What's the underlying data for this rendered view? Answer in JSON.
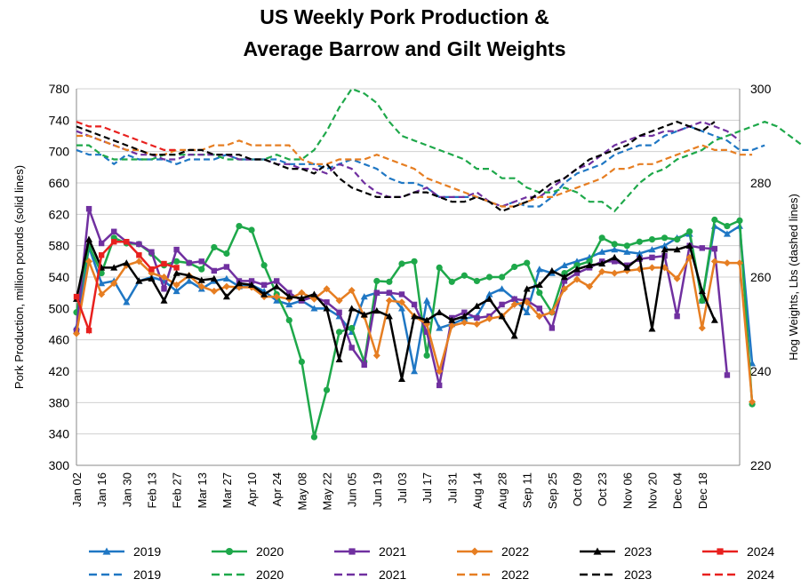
{
  "chart_data": {
    "type": "line",
    "title_line1": "US Weekly Pork Production &",
    "title_line2": "Average Barrow and Gilt Weights",
    "ylabel_left": "Pork Production, million pounds (solid lines)",
    "ylabel_right": "Hog Weights, Lbs (dashed lines)",
    "ylim_left": [
      300,
      780
    ],
    "ylim_right": [
      220,
      300
    ],
    "yticks_left": [
      300,
      340,
      380,
      420,
      460,
      500,
      540,
      580,
      620,
      660,
      700,
      740,
      780
    ],
    "yticks_right": [
      220,
      240,
      260,
      280,
      300
    ],
    "x_tick_labels": [
      "Jan 02",
      "Jan 16",
      "Jan 30",
      "Feb 13",
      "Feb 27",
      "Mar 13",
      "Mar 27",
      "Apr 10",
      "Apr 24",
      "May 08",
      "May 22",
      "Jun 05",
      "Jun 19",
      "Jul 03",
      "Jul 17",
      "Jul 31",
      "Aug 14",
      "Aug 28",
      "Sep 11",
      "Sep 25",
      "Oct 09",
      "Oct 23",
      "Nov 06",
      "Nov 20",
      "Dec 04",
      "Dec 18"
    ],
    "grid": "horizontal",
    "legend_position": "bottom",
    "production_series": [
      {
        "name": "2019",
        "color": "#1f77c4",
        "marker": "triangle",
        "values": [
          476,
          578,
          532,
          535,
          508,
          535,
          540,
          535,
          522,
          535,
          525,
          535,
          538,
          528,
          530,
          522,
          510,
          505,
          510,
          500,
          500,
          490,
          470,
          515,
          520,
          520,
          500,
          420,
          510,
          475,
          480,
          487,
          490,
          518,
          525,
          512,
          495,
          550,
          545,
          555,
          560,
          565,
          572,
          575,
          572,
          570,
          575,
          580,
          590,
          595,
          510,
          605,
          595,
          605,
          430
        ]
      },
      {
        "name": "2020",
        "color": "#1ea84a",
        "marker": "circle",
        "values": [
          495,
          580,
          545,
          590,
          583,
          582,
          570,
          555,
          560,
          558,
          550,
          578,
          570,
          605,
          600,
          555,
          518,
          485,
          432,
          336,
          396,
          470,
          475,
          432,
          535,
          534,
          557,
          560,
          440,
          552,
          534,
          542,
          535,
          540,
          540,
          553,
          558,
          520,
          495,
          545,
          555,
          560,
          590,
          582,
          580,
          585,
          588,
          590,
          588,
          598,
          510,
          613,
          605,
          612,
          378
        ]
      },
      {
        "name": "2021",
        "color": "#7030a0",
        "marker": "square",
        "values": [
          472,
          627,
          583,
          598,
          585,
          582,
          572,
          525,
          575,
          558,
          560,
          548,
          553,
          535,
          535,
          530,
          535,
          520,
          510,
          515,
          508,
          495,
          450,
          428,
          520,
          520,
          518,
          505,
          470,
          402,
          488,
          495,
          488,
          490,
          505,
          512,
          510,
          500,
          475,
          535,
          545,
          552,
          560,
          560,
          555,
          563,
          565,
          567,
          490,
          580,
          577,
          576,
          415
        ]
      },
      {
        "name": "2022",
        "color": "#e67e22",
        "marker": "diamond",
        "values": [
          468,
          560,
          518,
          532,
          555,
          560,
          545,
          540,
          530,
          542,
          528,
          522,
          528,
          527,
          527,
          515,
          515,
          512,
          520,
          512,
          525,
          510,
          523,
          490,
          440,
          510,
          508,
          490,
          480,
          420,
          478,
          482,
          480,
          487,
          490,
          505,
          508,
          490,
          495,
          525,
          537,
          528,
          547,
          545,
          548,
          550,
          552,
          552,
          538,
          565,
          475,
          560,
          558,
          558,
          381
        ]
      },
      {
        "name": "2023",
        "color": "#000000",
        "marker": "triangle",
        "values": [
          512,
          588,
          552,
          552,
          558,
          535,
          538,
          510,
          545,
          542,
          536,
          538,
          515,
          532,
          530,
          518,
          528,
          515,
          513,
          518,
          500,
          435,
          500,
          492,
          497,
          490,
          410,
          490,
          485,
          495,
          485,
          490,
          503,
          512,
          490,
          465,
          525,
          530,
          548,
          540,
          550,
          555,
          557,
          565,
          552,
          565,
          474,
          575,
          575,
          580,
          522,
          485
        ]
      },
      {
        "name": "2024",
        "color": "#e8201e",
        "marker": "square",
        "values": [
          515,
          472,
          568,
          585,
          585,
          568,
          550,
          557,
          552
        ]
      }
    ],
    "weight_series": [
      {
        "name": "2019",
        "color": "#1f77c4",
        "values": [
          287,
          286,
          286,
          284,
          286,
          285,
          285,
          285,
          284,
          285,
          285,
          285,
          286,
          285,
          285,
          285,
          285,
          284,
          284,
          284,
          283,
          284,
          285,
          284,
          283,
          281,
          280,
          280,
          279,
          277,
          277,
          277,
          277,
          276,
          275,
          276,
          275,
          275,
          277,
          280,
          282,
          283,
          284,
          286,
          287,
          288,
          288,
          290,
          291,
          292,
          291,
          290,
          289,
          287,
          287,
          288
        ]
      },
      {
        "name": "2020",
        "color": "#1ea84a",
        "values": [
          288,
          288,
          286,
          285,
          285,
          285,
          285,
          286,
          286,
          286,
          286,
          286,
          285,
          285,
          285,
          285,
          286,
          285,
          285,
          287,
          291,
          296,
          300,
          299,
          297,
          293,
          290,
          289,
          288,
          287,
          286,
          285,
          283,
          283,
          281,
          281,
          279,
          278,
          278,
          279,
          278,
          276,
          276,
          274,
          277,
          280,
          282,
          283,
          285,
          286,
          287,
          289,
          290,
          291,
          292,
          293,
          292,
          290,
          288
        ]
      },
      {
        "name": "2021",
        "color": "#7030a0",
        "values": [
          291,
          290,
          289,
          288,
          287,
          286,
          286,
          285,
          285,
          286,
          286,
          286,
          286,
          285,
          285,
          285,
          284,
          284,
          283,
          283,
          282,
          284,
          283,
          280,
          278,
          277,
          277,
          278,
          279,
          277,
          277,
          277,
          278,
          276,
          275,
          276,
          277,
          277,
          279,
          281,
          283,
          284,
          286,
          288,
          289,
          290,
          290,
          291,
          291,
          292,
          293,
          292,
          291,
          289
        ]
      },
      {
        "name": "2022",
        "color": "#e67e22",
        "values": [
          290,
          290,
          289,
          288,
          287,
          287,
          286,
          286,
          287,
          287,
          287,
          288,
          288,
          289,
          288,
          288,
          288,
          288,
          285,
          284,
          284,
          285,
          285,
          285,
          286,
          285,
          284,
          283,
          281,
          280,
          279,
          278,
          277,
          276,
          275,
          275,
          276,
          277,
          277,
          278,
          279,
          280,
          281,
          283,
          283,
          284,
          284,
          285,
          286,
          287,
          288,
          287,
          287,
          286,
          286
        ]
      },
      {
        "name": "2023",
        "color": "#000000",
        "values": [
          292,
          291,
          290,
          289,
          288,
          287,
          286,
          286,
          286,
          287,
          287,
          286,
          286,
          286,
          285,
          285,
          284,
          283,
          283,
          282,
          284,
          281,
          279,
          278,
          277,
          277,
          277,
          278,
          278,
          277,
          276,
          276,
          277,
          276,
          274,
          275,
          276,
          278,
          280,
          281,
          283,
          285,
          286,
          287,
          288,
          290,
          291,
          292,
          293,
          292,
          291,
          293
        ]
      },
      {
        "name": "2024",
        "color": "#e8201e",
        "values": [
          293,
          292,
          292,
          291,
          290,
          289,
          288,
          287,
          287
        ]
      }
    ]
  },
  "legend": {
    "row1": [
      {
        "label": "2019",
        "color": "#1f77c4",
        "marker": "triangle"
      },
      {
        "label": "2020",
        "color": "#1ea84a",
        "marker": "circle"
      },
      {
        "label": "2021",
        "color": "#7030a0",
        "marker": "square"
      },
      {
        "label": "2022",
        "color": "#e67e22",
        "marker": "diamond"
      },
      {
        "label": "2023",
        "color": "#000000",
        "marker": "triangle"
      },
      {
        "label": "2024",
        "color": "#e8201e",
        "marker": "square"
      }
    ],
    "row2": [
      {
        "label": "2019",
        "color": "#1f77c4"
      },
      {
        "label": "2020",
        "color": "#1ea84a"
      },
      {
        "label": "2021",
        "color": "#7030a0"
      },
      {
        "label": "2022",
        "color": "#e67e22"
      },
      {
        "label": "2023",
        "color": "#000000"
      },
      {
        "label": "2024",
        "color": "#e8201e"
      }
    ]
  }
}
